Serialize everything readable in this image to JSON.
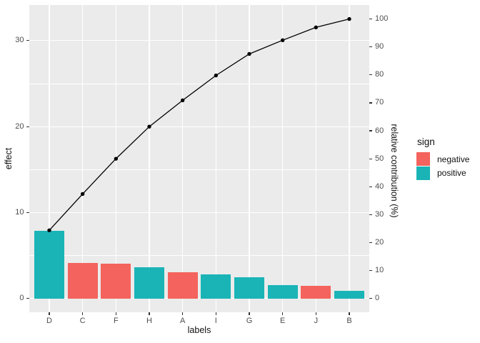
{
  "chart_data": {
    "type": "bar",
    "subtype": "pareto-with-cumulative-line",
    "title": "",
    "xlabel": "labels",
    "ylabel_left": "effect",
    "ylabel_right": "relative contribution (%)",
    "categories": [
      "D",
      "C",
      "F",
      "H",
      "A",
      "I",
      "G",
      "E",
      "J",
      "B"
    ],
    "series": [
      {
        "name": "effect",
        "type": "bar",
        "values": [
          7.9,
          4.1,
          4.05,
          3.65,
          3.05,
          2.8,
          2.45,
          1.55,
          1.45,
          0.85
        ],
        "signs": [
          "positive",
          "negative",
          "negative",
          "positive",
          "negative",
          "positive",
          "positive",
          "positive",
          "negative",
          "positive"
        ]
      },
      {
        "name": "relative contribution (%)",
        "type": "line",
        "values": [
          24.4,
          37.4,
          50.0,
          61.5,
          70.9,
          79.8,
          87.5,
          92.4,
          97.0,
          100.0
        ]
      }
    ],
    "left_axis": {
      "ticks": [
        0,
        10,
        20,
        30
      ],
      "minor_ticks": [
        5,
        15,
        25
      ],
      "range": [
        -1.6,
        34.2
      ]
    },
    "right_axis": {
      "ticks": [
        0,
        10,
        20,
        30,
        40,
        50,
        60,
        70,
        80,
        90,
        100
      ],
      "range": [
        -4.9,
        104.9
      ]
    },
    "legend": {
      "title": "sign",
      "position": "right",
      "items": [
        {
          "label": "negative",
          "color": "#F4635D"
        },
        {
          "label": "positive",
          "color": "#1AB4B6"
        }
      ]
    },
    "grid": true,
    "colors": {
      "panel_background": "#EBEBEB",
      "gridline": "#FFFFFF",
      "cumulative_line": "#000000",
      "tick_text": "#4D4D4D",
      "tick_mark": "#333333"
    }
  }
}
